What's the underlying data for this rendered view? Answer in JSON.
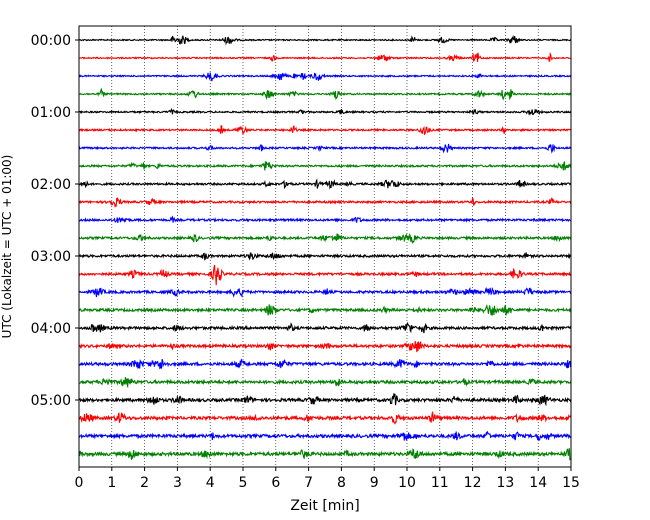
{
  "chart_data": {
    "type": "line",
    "xlabel": "Zeit  [min]",
    "ylabel": "UTC (Lokalzeit = UTC + 01:00)",
    "xlim": [
      0,
      15
    ],
    "x_ticks": [
      0,
      1,
      2,
      3,
      4,
      5,
      6,
      7,
      8,
      9,
      10,
      11,
      12,
      13,
      14,
      15
    ],
    "x_tick_labels": [
      "0",
      "1",
      "2",
      "3",
      "4",
      "5",
      "6",
      "7",
      "8",
      "9",
      "10",
      "11",
      "12",
      "13",
      "14",
      "15"
    ],
    "grid": "vertical dotted",
    "y_tick_labels": [
      "00:00",
      "01:00",
      "02:00",
      "03:00",
      "04:00",
      "05:00"
    ],
    "trace_colors": [
      "#000000",
      "#ff0000",
      "#0000ff",
      "#008000"
    ],
    "traces": [
      {
        "start": "00:00",
        "color": "#000000"
      },
      {
        "start": "00:15",
        "color": "#ff0000"
      },
      {
        "start": "00:30",
        "color": "#0000ff"
      },
      {
        "start": "00:45",
        "color": "#008000"
      },
      {
        "start": "01:00",
        "color": "#000000"
      },
      {
        "start": "01:15",
        "color": "#ff0000"
      },
      {
        "start": "01:30",
        "color": "#0000ff"
      },
      {
        "start": "01:45",
        "color": "#008000"
      },
      {
        "start": "02:00",
        "color": "#000000"
      },
      {
        "start": "02:15",
        "color": "#ff0000"
      },
      {
        "start": "02:30",
        "color": "#0000ff"
      },
      {
        "start": "02:45",
        "color": "#008000"
      },
      {
        "start": "03:00",
        "color": "#000000"
      },
      {
        "start": "03:15",
        "color": "#ff0000"
      },
      {
        "start": "03:30",
        "color": "#0000ff"
      },
      {
        "start": "03:45",
        "color": "#008000"
      },
      {
        "start": "04:00",
        "color": "#000000"
      },
      {
        "start": "04:15",
        "color": "#ff0000"
      },
      {
        "start": "04:30",
        "color": "#0000ff"
      },
      {
        "start": "04:45",
        "color": "#008000"
      },
      {
        "start": "05:00",
        "color": "#000000"
      },
      {
        "start": "05:15",
        "color": "#ff0000"
      },
      {
        "start": "05:30",
        "color": "#0000ff"
      },
      {
        "start": "05:45",
        "color": "#008000"
      }
    ]
  }
}
